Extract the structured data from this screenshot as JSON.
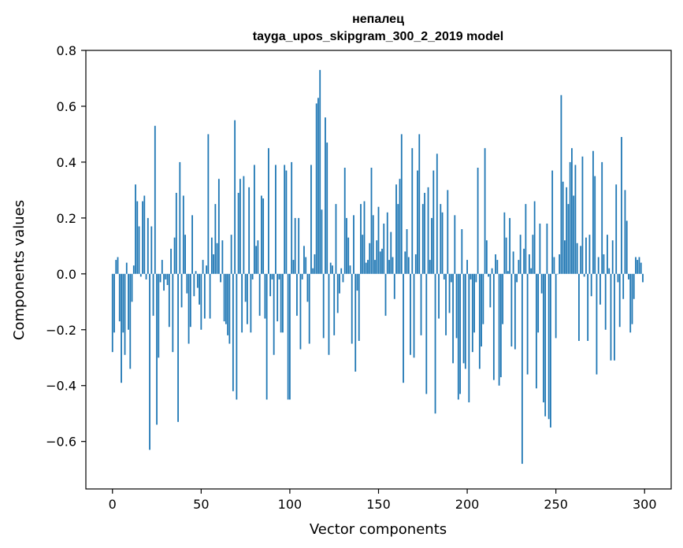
{
  "chart_data": {
    "type": "bar",
    "title_word": "непалец",
    "title_model": "tayga_upos_skipgram_300_2_2019 model",
    "xlabel": "Vector components",
    "ylabel": "Components values",
    "xlim": [
      -15,
      315
    ],
    "ylim": [
      -0.77,
      0.8
    ],
    "xticks": [
      0,
      50,
      100,
      150,
      200,
      250,
      300
    ],
    "yticks": [
      -0.6,
      -0.4,
      -0.2,
      0.0,
      0.2,
      0.4,
      0.6,
      0.8
    ],
    "ytick_labels": [
      "−0.6",
      "−0.4",
      "−0.2",
      "0.0",
      "0.2",
      "0.4",
      "0.6",
      "0.8"
    ],
    "bar_color": "#1f77b4",
    "values": [
      -0.28,
      -0.21,
      0.05,
      0.06,
      -0.17,
      -0.39,
      -0.21,
      -0.29,
      0.04,
      -0.2,
      -0.34,
      -0.1,
      0.03,
      0.32,
      0.26,
      0.17,
      -0.01,
      0.26,
      0.28,
      -0.02,
      0.2,
      -0.63,
      0.17,
      -0.15,
      0.53,
      -0.54,
      -0.3,
      -0.03,
      0.05,
      -0.06,
      -0.02,
      -0.04,
      -0.19,
      0.09,
      -0.28,
      0.13,
      0.29,
      -0.53,
      0.4,
      -0.12,
      0.28,
      0.14,
      -0.07,
      -0.25,
      -0.19,
      0.21,
      -0.08,
      0.01,
      -0.05,
      -0.11,
      -0.2,
      0.05,
      -0.16,
      0.03,
      0.5,
      -0.16,
      0.13,
      0.07,
      0.25,
      0.11,
      0.34,
      -0.03,
      0.12,
      -0.17,
      -0.18,
      -0.22,
      -0.25,
      0.14,
      -0.42,
      0.55,
      -0.45,
      0.29,
      0.34,
      -0.21,
      0.35,
      -0.1,
      -0.18,
      0.31,
      -0.21,
      -0.02,
      0.39,
      0.1,
      0.12,
      -0.15,
      0.28,
      0.27,
      -0.16,
      -0.45,
      0.45,
      -0.08,
      -0.02,
      -0.29,
      0.39,
      -0.17,
      -0.02,
      -0.21,
      -0.21,
      0.39,
      0.37,
      -0.45,
      -0.45,
      0.4,
      0.05,
      0.2,
      -0.15,
      0.2,
      -0.27,
      -0.02,
      0.1,
      0.06,
      -0.1,
      -0.25,
      0.39,
      0.02,
      0.07,
      0.61,
      0.63,
      0.73,
      0.23,
      -0.23,
      0.56,
      0.47,
      -0.29,
      0.04,
      0.03,
      -0.22,
      0.25,
      -0.14,
      -0.07,
      0.02,
      -0.03,
      0.38,
      0.2,
      0.13,
      0.03,
      -0.25,
      0.21,
      -0.35,
      -0.06,
      -0.24,
      0.25,
      0.14,
      0.26,
      0.04,
      0.05,
      0.11,
      0.38,
      0.21,
      0.05,
      0.12,
      0.24,
      0.08,
      0.09,
      0.18,
      -0.15,
      0.22,
      0.05,
      0.15,
      0.06,
      -0.09,
      0.32,
      0.25,
      0.34,
      0.5,
      -0.39,
      0.08,
      0.16,
      0.06,
      -0.29,
      0.45,
      -0.3,
      0.07,
      0.37,
      0.5,
      -0.22,
      0.25,
      0.29,
      -0.43,
      0.31,
      0.05,
      0.2,
      0.37,
      -0.5,
      0.43,
      -0.16,
      0.25,
      0.22,
      -0.02,
      -0.22,
      0.3,
      -0.14,
      -0.03,
      -0.32,
      0.21,
      -0.23,
      -0.45,
      -0.43,
      0.16,
      -0.32,
      -0.34,
      0.05,
      -0.46,
      -0.02,
      -0.28,
      -0.21,
      -0.03,
      0.38,
      -0.34,
      -0.26,
      -0.18,
      0.45,
      0.12,
      -0.01,
      -0.12,
      0.02,
      -0.38,
      0.07,
      0.05,
      -0.4,
      -0.37,
      -0.18,
      0.22,
      0.13,
      0.01,
      0.2,
      -0.26,
      0.08,
      -0.27,
      -0.03,
      0.05,
      0.14,
      -0.68,
      0.09,
      0.25,
      -0.36,
      0.07,
      0.02,
      0.14,
      0.26,
      -0.41,
      -0.21,
      0.18,
      -0.07,
      -0.46,
      -0.51,
      0.18,
      -0.52,
      -0.55,
      0.37,
      0.06,
      -0.23,
      0.0,
      0.07,
      0.64,
      0.33,
      0.12,
      0.31,
      0.25,
      0.4,
      0.45,
      0.28,
      0.39,
      0.11,
      -0.24,
      0.1,
      0.42,
      -0.01,
      0.13,
      -0.24,
      0.14,
      -0.08,
      0.44,
      0.35,
      -0.36,
      0.06,
      -0.11,
      0.4,
      0.07,
      -0.2,
      0.14,
      0.02,
      -0.31,
      0.12,
      -0.31,
      0.32,
      -0.03,
      -0.19,
      0.49,
      -0.09,
      0.3,
      0.19,
      -0.02,
      -0.21,
      -0.18,
      -0.09,
      0.06,
      0.05,
      0.06,
      0.04,
      -0.03
    ]
  }
}
